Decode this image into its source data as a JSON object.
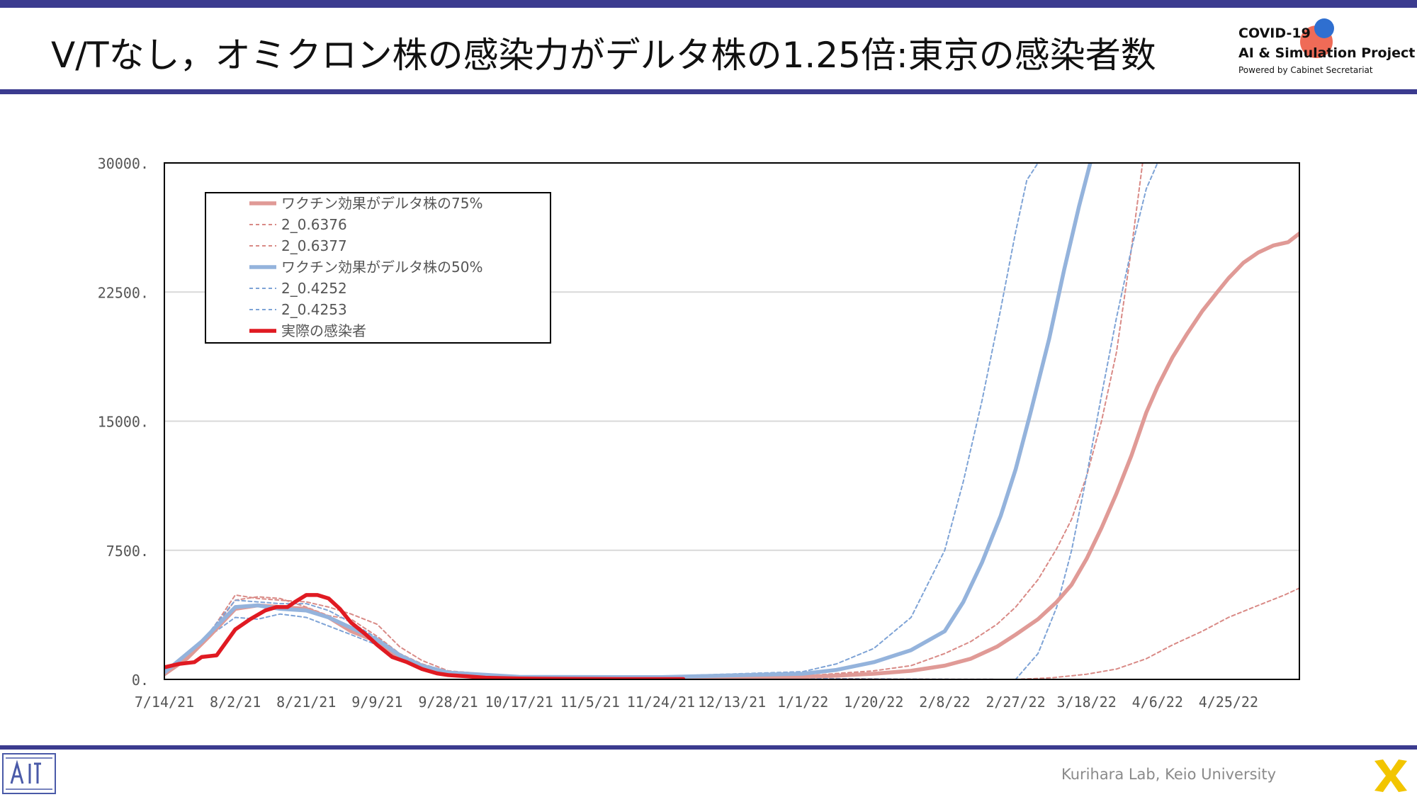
{
  "slide": {
    "title": "V/Tなし，オミクロン株の感染力がデルタ株の1.25倍:東京の感染者数",
    "footer_credit": "Kurihara Lab, Keio University"
  },
  "logo": {
    "line1": "COVID-19",
    "line2": "AI & Simulation Project",
    "line3": "Powered by Cabinet Secretariat"
  },
  "colors": {
    "band": "#3b3b8f",
    "pink": "#e09a96",
    "pink_dash": "#d98a86",
    "blue": "#94b3dc",
    "blue_dash": "#7ea3d6",
    "red": "#e01a22",
    "grid": "#d9d9d9"
  },
  "chart_data": {
    "type": "line",
    "title": "",
    "xlabel": "",
    "ylabel": "",
    "ylim": [
      0,
      30000
    ],
    "yticks": [
      "30000.",
      "22500.",
      "15000.",
      "7500.",
      "0."
    ],
    "ytick_values": [
      30000,
      22500,
      15000,
      7500,
      0
    ],
    "xticks": [
      "7/14/21",
      "8/2/21",
      "8/21/21",
      "9/9/21",
      "9/28/21",
      "10/17/21",
      "11/5/21",
      "11/24/21",
      "12/13/21",
      "1/1/22",
      "1/20/22",
      "2/8/22",
      "2/27/22",
      "3/18/22",
      "4/6/22",
      "4/25/22"
    ],
    "x_start": "7/14/21",
    "x_end": "5/14/22",
    "grid": "horizontal",
    "legend_position": "top-left",
    "series": [
      {
        "name": "ワクチン効果がデルタ株の75%",
        "style": "solid-thick",
        "color": "#e09a96",
        "x": [
          "7/14/21",
          "7/20/21",
          "7/26/21",
          "8/2/21",
          "8/8/21",
          "8/14/21",
          "8/21/21",
          "8/27/21",
          "9/2/21",
          "9/9/21",
          "9/15/21",
          "9/21/21",
          "9/28/21",
          "10/5/21",
          "10/17/21",
          "11/5/21",
          "11/24/21",
          "12/13/21",
          "1/1/22",
          "1/10/22",
          "1/20/22",
          "1/30/22",
          "2/8/22",
          "2/15/22",
          "2/22/22",
          "2/27/22",
          "3/5/22",
          "3/10/22",
          "3/14/22",
          "3/18/22",
          "3/22/22",
          "3/26/22",
          "3/30/22",
          "4/3/22",
          "4/6/22",
          "4/10/22",
          "4/14/22",
          "4/18/22",
          "4/22/22",
          "4/25/22",
          "4/29/22",
          "5/3/22",
          "5/7/22",
          "5/11/22",
          "5/14/22"
        ],
        "values": [
          300,
          1200,
          2500,
          4100,
          4300,
          4200,
          4100,
          3600,
          2800,
          2200,
          1300,
          700,
          350,
          180,
          120,
          100,
          100,
          120,
          150,
          220,
          330,
          500,
          800,
          1200,
          1900,
          2600,
          3500,
          4500,
          5500,
          7000,
          8800,
          10800,
          13000,
          15500,
          17000,
          18700,
          20100,
          21400,
          22500,
          23300,
          24200,
          24800,
          25200,
          25400,
          25900
        ]
      },
      {
        "name": "2_0.6376",
        "style": "dashed",
        "color": "#d98a86",
        "x": [
          "7/14/21",
          "7/24/21",
          "8/2/21",
          "8/8/21",
          "8/14/21",
          "8/21/21",
          "8/27/21",
          "9/2/21",
          "9/9/21",
          "9/15/21",
          "9/21/21",
          "9/28/21",
          "10/17/21",
          "11/24/21",
          "1/1/22",
          "1/20/22",
          "1/30/22",
          "2/8/22",
          "2/15/22",
          "2/22/22",
          "2/27/22",
          "3/5/22",
          "3/10/22",
          "3/14/22",
          "3/18/22",
          "3/22/22",
          "3/26/22",
          "3/30/22",
          "4/2/22"
        ],
        "values": [
          400,
          2000,
          4600,
          4800,
          4700,
          4200,
          3700,
          3500,
          2500,
          1500,
          900,
          450,
          150,
          120,
          200,
          500,
          800,
          1500,
          2200,
          3200,
          4200,
          5800,
          7600,
          9300,
          11800,
          15000,
          19000,
          25000,
          30000
        ]
      },
      {
        "name": "2_0.6377",
        "style": "dashed",
        "color": "#d98a86",
        "x": [
          "7/14/21",
          "7/24/21",
          "8/2/21",
          "8/8/21",
          "8/14/21",
          "8/21/21",
          "8/27/21",
          "9/2/21",
          "9/9/21",
          "9/15/21",
          "9/21/21",
          "9/28/21",
          "10/17/21",
          "11/24/21",
          "1/1/22",
          "1/20/22",
          "2/8/22",
          "2/27/22",
          "3/9/22",
          "3/18/22",
          "3/26/22",
          "4/3/22",
          "4/10/22",
          "4/18/22",
          "4/25/22",
          "5/3/22",
          "5/10/22",
          "5/14/22"
        ],
        "values": [
          400,
          2000,
          4900,
          4700,
          4600,
          4500,
          4200,
          3800,
          3200,
          1900,
          1100,
          500,
          150,
          100,
          60,
          30,
          10,
          0,
          100,
          300,
          600,
          1200,
          2000,
          2800,
          3600,
          4300,
          4900,
          5300
        ]
      },
      {
        "name": "ワクチン効果がデルタ株の50%",
        "style": "solid-thick",
        "color": "#94b3dc",
        "x": [
          "7/14/21",
          "7/24/21",
          "8/2/21",
          "8/8/21",
          "8/14/21",
          "8/21/21",
          "8/27/21",
          "9/2/21",
          "9/9/21",
          "9/15/21",
          "9/21/21",
          "9/28/21",
          "10/17/21",
          "11/24/21",
          "1/1/22",
          "1/10/22",
          "1/20/22",
          "1/30/22",
          "2/8/22",
          "2/13/22",
          "2/18/22",
          "2/23/22",
          "2/27/22",
          "3/3/22",
          "3/8/22",
          "3/12/22",
          "3/16/22",
          "3/19/22"
        ],
        "values": [
          400,
          2200,
          4200,
          4300,
          4100,
          4000,
          3600,
          3000,
          2300,
          1400,
          800,
          400,
          150,
          130,
          330,
          550,
          1000,
          1700,
          2800,
          4500,
          6800,
          9500,
          12200,
          15500,
          19800,
          23800,
          27500,
          30000
        ]
      },
      {
        "name": "2_0.4252",
        "style": "dashed",
        "color": "#7ea3d6",
        "x": [
          "7/14/21",
          "7/24/21",
          "8/2/21",
          "8/8/21",
          "8/14/21",
          "8/21/21",
          "8/27/21",
          "9/2/21",
          "9/9/21",
          "9/15/21",
          "9/21/21",
          "9/28/21",
          "10/17/21",
          "11/24/21",
          "1/1/22",
          "1/10/22",
          "1/20/22",
          "1/30/22",
          "2/8/22",
          "2/13/22",
          "2/18/22",
          "2/23/22",
          "2/27/22",
          "3/2/22",
          "3/5/22"
        ],
        "values": [
          400,
          2200,
          3600,
          3500,
          3800,
          3600,
          3100,
          2600,
          2000,
          1200,
          700,
          400,
          200,
          180,
          450,
          900,
          1800,
          3600,
          7500,
          11500,
          16200,
          21500,
          26000,
          29000,
          30000
        ]
      },
      {
        "name": "2_0.4253",
        "style": "dashed",
        "color": "#7ea3d6",
        "x": [
          "7/14/21",
          "7/24/21",
          "8/2/21",
          "8/8/21",
          "8/14/21",
          "8/21/21",
          "8/27/21",
          "9/2/21",
          "9/9/21",
          "9/15/21",
          "9/21/21",
          "9/28/21",
          "10/17/21",
          "11/24/21",
          "1/1/22",
          "1/20/22",
          "2/8/22",
          "2/27/22",
          "3/5/22",
          "3/10/22",
          "3/14/22",
          "3/18/22",
          "3/22/22",
          "3/26/22",
          "3/30/22",
          "4/3/22",
          "4/6/22"
        ],
        "values": [
          400,
          2200,
          4600,
          4500,
          4400,
          4400,
          4000,
          3300,
          2400,
          1500,
          800,
          400,
          150,
          80,
          40,
          20,
          10,
          0,
          1500,
          4200,
          7500,
          11800,
          16500,
          21000,
          25000,
          28500,
          30000
        ]
      },
      {
        "name": "実際の感染者",
        "style": "solid-thick",
        "color": "#e01a22",
        "x": [
          "7/14/21",
          "7/18/21",
          "7/22/21",
          "7/24/21",
          "7/28/21",
          "8/2/21",
          "8/6/21",
          "8/10/21",
          "8/13/21",
          "8/16/21",
          "8/18/21",
          "8/21/21",
          "8/24/21",
          "8/27/21",
          "8/30/21",
          "9/2/21",
          "9/6/21",
          "9/9/21",
          "9/13/21",
          "9/17/21",
          "9/21/21",
          "9/25/21",
          "9/28/21",
          "10/3/21",
          "10/8/21",
          "10/17/21",
          "10/31/21",
          "11/14/21",
          "11/24/21",
          "11/30/21"
        ],
        "values": [
          700,
          900,
          1000,
          1300,
          1400,
          2900,
          3500,
          4000,
          4200,
          4200,
          4500,
          4900,
          4900,
          4700,
          4100,
          3300,
          2600,
          2000,
          1300,
          1000,
          600,
          350,
          250,
          180,
          100,
          50,
          30,
          20,
          20,
          20
        ]
      }
    ]
  }
}
